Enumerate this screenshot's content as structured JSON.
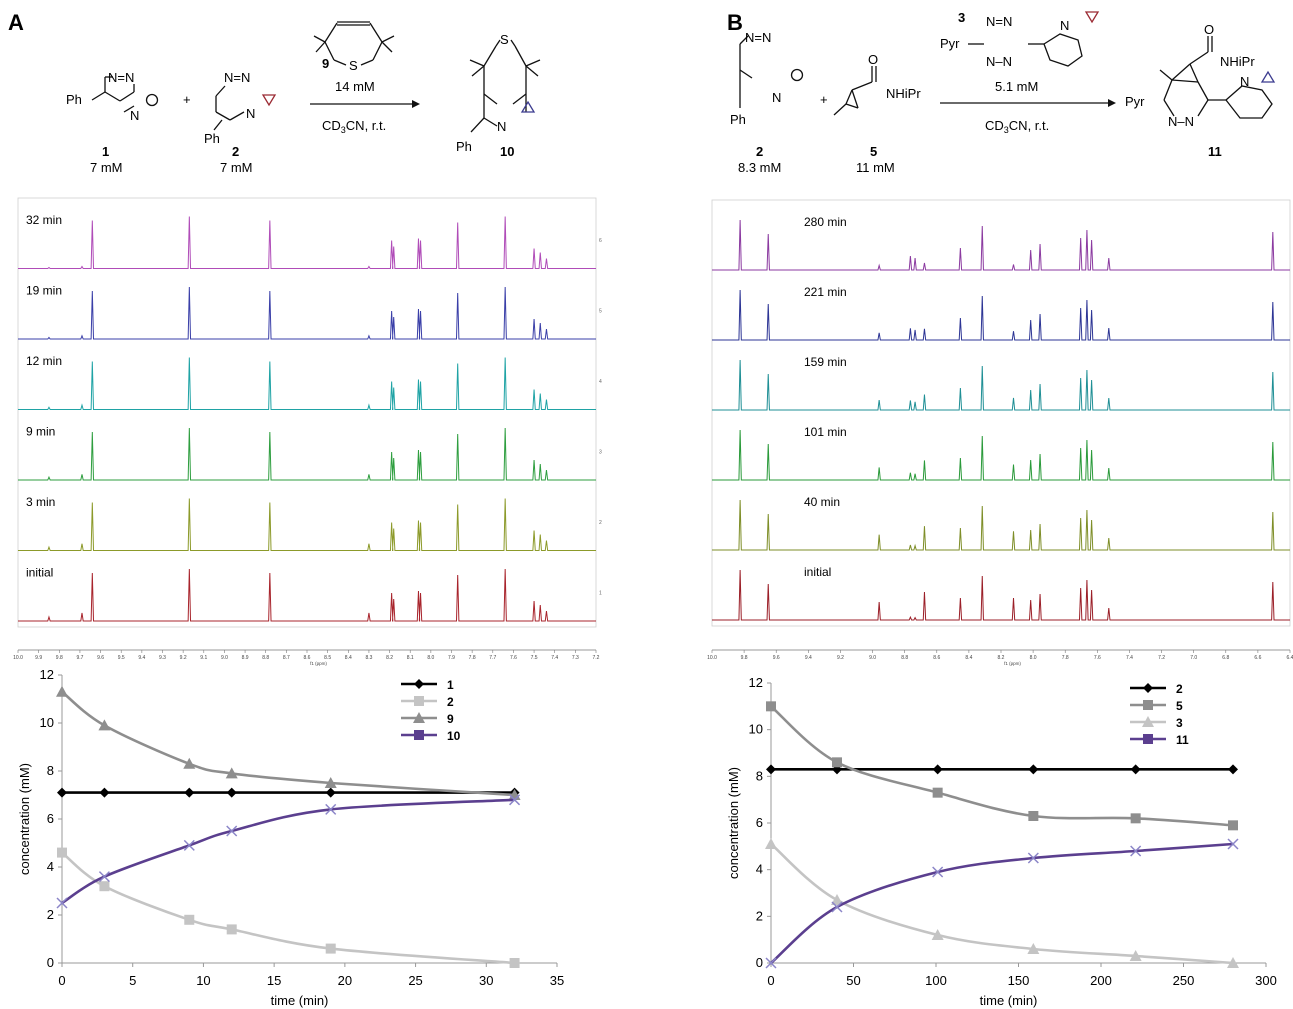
{
  "panels": [
    {
      "letter": "A",
      "scheme": {
        "reactant_a": {
          "num": "1",
          "conc": "7 mM",
          "ph": "Ph",
          "marker": "circle"
        },
        "reactant_b": {
          "num": "2",
          "conc": "7 mM",
          "ph": "Ph",
          "marker": "down-triangle"
        },
        "reagent": {
          "num": "9",
          "conc": "14 mM",
          "atom": "S"
        },
        "conditions": "CD3CN, r.t.",
        "product": {
          "num": "10",
          "ph": "Ph",
          "marker": "up-triangle"
        }
      },
      "nmr": {
        "traces": [
          {
            "label": "32 min",
            "color": "#b04cb8"
          },
          {
            "label": "19 min",
            "color": "#3a3fa8"
          },
          {
            "label": "12 min",
            "color": "#1fa3a5"
          },
          {
            "label": "9 min",
            "color": "#2e9e3f"
          },
          {
            "label": "3 min",
            "color": "#8c9a2a"
          },
          {
            "label": "initial",
            "color": "#a8242c"
          }
        ],
        "axis_ticks": [
          "10.0",
          "9.9",
          "9.8",
          "9.7",
          "9.6",
          "9.5",
          "9.4",
          "9.3",
          "9.2",
          "9.1",
          "9.0",
          "8.9",
          "8.8",
          "8.7",
          "8.6",
          "8.5",
          "8.4",
          "8.3",
          "8.2",
          "8.1",
          "8.0",
          "7.9",
          "7.8",
          "7.7",
          "7.6",
          "7.5",
          "7.4",
          "7.3",
          "7.2"
        ],
        "axis_label": "f1 (ppm)",
        "side_ticks": [
          "6",
          "5",
          "4",
          "3",
          "2",
          "1"
        ]
      }
    },
    {
      "letter": "B",
      "scheme": {
        "reactant_a": {
          "num": "2",
          "conc": "8.3 mM",
          "ph": "Ph",
          "marker": "circle"
        },
        "reactant_b": {
          "num": "5",
          "conc": "11 mM",
          "group": "NHiPr"
        },
        "reagent": {
          "num": "3",
          "conc": "5.1 mM",
          "group": "Pyr"
        },
        "conditions": "CD3CN, r.t.",
        "product": {
          "num": "11",
          "group": "Pyr",
          "amide": "NHiPr",
          "marker": "up-triangle"
        }
      },
      "nmr": {
        "traces": [
          {
            "label": "280 min",
            "color": "#8b3aa0"
          },
          {
            "label": "221 min",
            "color": "#2d3595"
          },
          {
            "label": "159 min",
            "color": "#1f8f95"
          },
          {
            "label": "101 min",
            "color": "#2a9a3a"
          },
          {
            "label": "40 min",
            "color": "#7e8e28"
          },
          {
            "label": "initial",
            "color": "#9b1f28"
          }
        ],
        "axis_ticks": [
          "10.0",
          "9.8",
          "9.6",
          "9.4",
          "9.2",
          "9.0",
          "8.8",
          "8.6",
          "8.4",
          "8.2",
          "8.0",
          "7.8",
          "7.6",
          "7.4",
          "7.2",
          "7.0",
          "6.8",
          "6.6",
          "6.4"
        ],
        "axis_label": "f1 (ppm)"
      }
    }
  ],
  "chart_data": [
    {
      "type": "line",
      "panel": "A",
      "xlabel": "time (min)",
      "ylabel": "concentration (mM)",
      "xlim": [
        0,
        35
      ],
      "ylim": [
        0,
        12
      ],
      "xticks": [
        0,
        5,
        10,
        15,
        20,
        25,
        30,
        35
      ],
      "yticks": [
        0,
        2,
        4,
        6,
        8,
        10,
        12
      ],
      "legend_position": "top-right",
      "series": [
        {
          "name": "1",
          "color": "#000000",
          "marker": "diamond",
          "x": [
            0,
            3,
            9,
            12,
            19,
            32
          ],
          "y": [
            7.1,
            7.1,
            7.1,
            7.1,
            7.1,
            7.1
          ]
        },
        {
          "name": "2",
          "color": "#c4c4c4",
          "marker": "square",
          "x": [
            0,
            3,
            9,
            12,
            19,
            32
          ],
          "y": [
            4.6,
            3.2,
            1.8,
            1.4,
            0.6,
            0.0
          ]
        },
        {
          "name": "9",
          "color": "#8e8e8e",
          "marker": "triangle",
          "x": [
            0,
            3,
            9,
            12,
            19,
            32
          ],
          "y": [
            11.3,
            9.9,
            8.3,
            7.9,
            7.5,
            7.0
          ]
        },
        {
          "name": "10",
          "color": "#5b3f8f",
          "marker": "x",
          "x": [
            0,
            3,
            9,
            12,
            19,
            32
          ],
          "y": [
            2.5,
            3.6,
            4.9,
            5.5,
            6.4,
            6.8
          ]
        }
      ]
    },
    {
      "type": "line",
      "panel": "B",
      "xlabel": "time (min)",
      "ylabel": "concentration (mM)",
      "xlim": [
        0,
        300
      ],
      "ylim": [
        0,
        12
      ],
      "xticks": [
        0,
        50,
        100,
        150,
        200,
        250,
        300
      ],
      "yticks": [
        0,
        2,
        4,
        6,
        8,
        10,
        12
      ],
      "legend_position": "top-right",
      "series": [
        {
          "name": "2",
          "color": "#000000",
          "marker": "diamond",
          "x": [
            0,
            40,
            101,
            159,
            221,
            280
          ],
          "y": [
            8.3,
            8.3,
            8.3,
            8.3,
            8.3,
            8.3
          ]
        },
        {
          "name": "5",
          "color": "#8e8e8e",
          "marker": "square",
          "x": [
            0,
            40,
            101,
            159,
            221,
            280
          ],
          "y": [
            11.0,
            8.6,
            7.3,
            6.3,
            6.2,
            5.9
          ]
        },
        {
          "name": "3",
          "color": "#c4c4c4",
          "marker": "triangle",
          "x": [
            0,
            40,
            101,
            159,
            221,
            280
          ],
          "y": [
            5.1,
            2.7,
            1.2,
            0.6,
            0.3,
            0.0
          ]
        },
        {
          "name": "11",
          "color": "#5b3f8f",
          "marker": "x",
          "x": [
            0,
            40,
            101,
            159,
            221,
            280
          ],
          "y": [
            0.0,
            2.4,
            3.9,
            4.5,
            4.8,
            5.1
          ]
        }
      ]
    }
  ]
}
